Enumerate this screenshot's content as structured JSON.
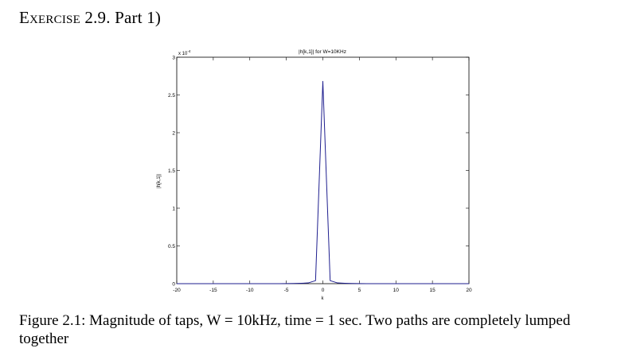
{
  "section": {
    "exercise_label": "Exercise 2.9.",
    "part_label": "Part 1)"
  },
  "figure": {
    "caption": "Figure 2.1: Magnitude of taps, W = 10kHz, time = 1 sec. Two paths are completely lumped together"
  },
  "chart_data": {
    "type": "line",
    "title": "|h[k,1]| for W=10KHz",
    "xlabel": "k",
    "ylabel": "|h[k,1]|",
    "y_exponent_label": "x 10",
    "y_exponent_power": "-4",
    "xlim": [
      -20,
      20
    ],
    "ylim": [
      0,
      3
    ],
    "x_ticks": [
      -20,
      -15,
      -10,
      -5,
      0,
      5,
      10,
      15,
      20
    ],
    "x_tick_labels": [
      "-20",
      "-15",
      "-10",
      "-5",
      "0",
      "5",
      "10",
      "15",
      "20"
    ],
    "y_ticks": [
      0,
      0.5,
      1,
      1.5,
      2,
      2.5,
      3
    ],
    "y_tick_labels": [
      "0",
      "0.5",
      "1",
      "1.5",
      "2",
      "2.5",
      "3"
    ],
    "grid": false,
    "series": [
      {
        "color": "#1f1f8f",
        "x": [
          -20,
          -19,
          -18,
          -17,
          -16,
          -15,
          -14,
          -13,
          -12,
          -11,
          -10,
          -9,
          -8,
          -7,
          -6,
          -5,
          -4,
          -3,
          -2,
          -1,
          0,
          1,
          2,
          3,
          4,
          5,
          6,
          7,
          8,
          9,
          10,
          11,
          12,
          13,
          14,
          15,
          16,
          17,
          18,
          19,
          20
        ],
        "y": [
          0,
          0,
          0,
          0,
          0,
          0,
          0,
          0,
          0,
          0,
          0,
          0,
          0,
          0,
          0,
          0.001,
          0.002,
          0.005,
          0.01,
          0.04,
          2.68,
          0.04,
          0.01,
          0.005,
          0.002,
          0.001,
          0,
          0,
          0,
          0,
          0,
          0,
          0,
          0,
          0,
          0,
          0,
          0,
          0,
          0,
          0
        ]
      }
    ]
  }
}
